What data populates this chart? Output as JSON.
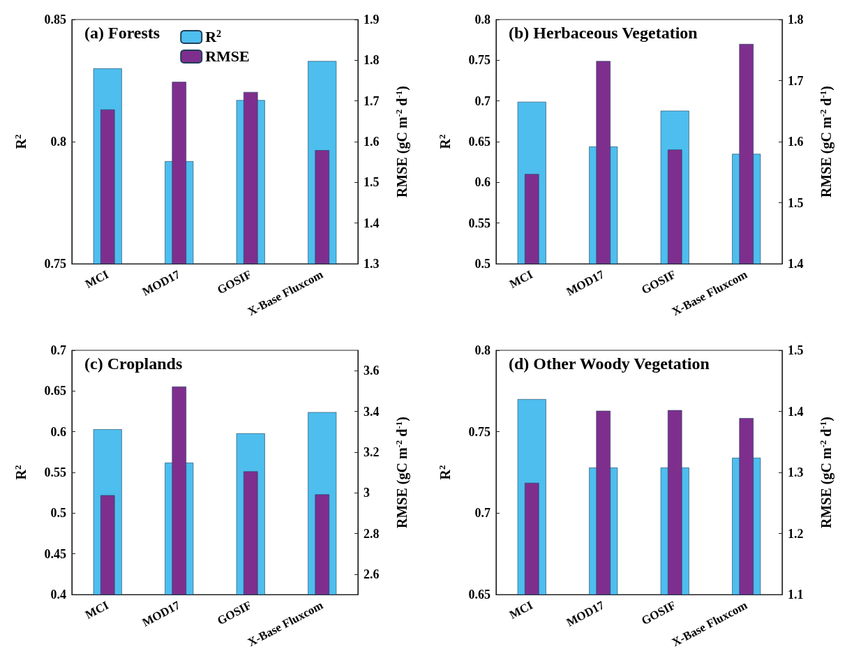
{
  "chart_data": [
    {
      "type": "bar",
      "title": "(a) Forests",
      "categories": [
        "MCI",
        "MOD17",
        "GOSIF",
        "X-Base Fluxcom"
      ],
      "ylabel": "R$^{2}$",
      "y2label": "RMSE (gC m$^{-2}$ d$^{-1}$)",
      "ylim": [
        0.75,
        0.85
      ],
      "yticks": [
        0.75,
        0.8,
        0.85
      ],
      "y2lim": [
        1.3,
        1.9
      ],
      "y2ticks": [
        1.3,
        1.4,
        1.5,
        1.6,
        1.7,
        1.8,
        1.9
      ],
      "legend": "top",
      "series": [
        {
          "name": "R$^{2}$",
          "color": "#4dbeee",
          "values": [
            0.83,
            0.792,
            0.817,
            0.833
          ]
        },
        {
          "name": "RMSE",
          "color": "#7e2f8e",
          "axis": "y2",
          "values": [
            1.679,
            1.747,
            1.722,
            1.579
          ]
        }
      ]
    },
    {
      "type": "bar",
      "title": "(b) Herbaceous Vegetation",
      "categories": [
        "MCI",
        "MOD17",
        "GOSIF",
        "X-Base Fluxcom"
      ],
      "ylabel": "R$^{2}$",
      "y2label": "RMSE (gC m$^{-2}$ d$^{-1}$)",
      "ylim": [
        0.5,
        0.8
      ],
      "yticks": [
        0.5,
        0.55,
        0.6,
        0.65,
        0.7,
        0.75,
        0.8
      ],
      "y2lim": [
        1.4,
        1.8
      ],
      "y2ticks": [
        1.4,
        1.5,
        1.6,
        1.7,
        1.8
      ],
      "series": [
        {
          "color": "#4dbeee",
          "values": [
            0.699,
            0.644,
            0.688,
            0.635
          ]
        },
        {
          "color": "#7e2f8e",
          "axis": "y2",
          "values": [
            1.547,
            1.732,
            1.587,
            1.76
          ]
        }
      ]
    },
    {
      "type": "bar",
      "title": "(c) Croplands",
      "categories": [
        "MCI",
        "MOD17",
        "GOSIF",
        "X-Base Fluxcom"
      ],
      "ylabel": "R$^{2}$",
      "y2label": "RMSE (gC m$^{-2}$ d$^{-1}$)",
      "ylim": [
        0.4,
        0.7
      ],
      "yticks": [
        0.4,
        0.45,
        0.5,
        0.55,
        0.6,
        0.65,
        0.7
      ],
      "y2lim": [
        2.5,
        3.7
      ],
      "y2ticks": [
        2.6,
        2.8,
        3,
        3.2,
        3.4,
        3.6
      ],
      "series": [
        {
          "color": "#4dbeee",
          "values": [
            0.603,
            0.562,
            0.598,
            0.624
          ]
        },
        {
          "color": "#7e2f8e",
          "axis": "y2",
          "values": [
            2.988,
            3.522,
            3.105,
            2.992
          ]
        }
      ]
    },
    {
      "type": "bar",
      "title": "(d) Other Woody Vegetation",
      "categories": [
        "MCI",
        "MOD17",
        "GOSIF",
        "X-Base Fluxcom"
      ],
      "ylabel": "R$^{2}$",
      "y2label": "RMSE (gC m$^{-2}$ d$^{-1}$)",
      "ylim": [
        0.65,
        0.8
      ],
      "yticks": [
        0.65,
        0.7,
        0.75,
        0.8
      ],
      "y2lim": [
        1.1,
        1.5
      ],
      "y2ticks": [
        1.1,
        1.2,
        1.3,
        1.4,
        1.5
      ],
      "series": [
        {
          "color": "#4dbeee",
          "values": [
            0.77,
            0.728,
            0.728,
            0.734
          ]
        },
        {
          "color": "#7e2f8e",
          "axis": "y2",
          "values": [
            1.283,
            1.401,
            1.402,
            1.389
          ]
        }
      ]
    }
  ]
}
